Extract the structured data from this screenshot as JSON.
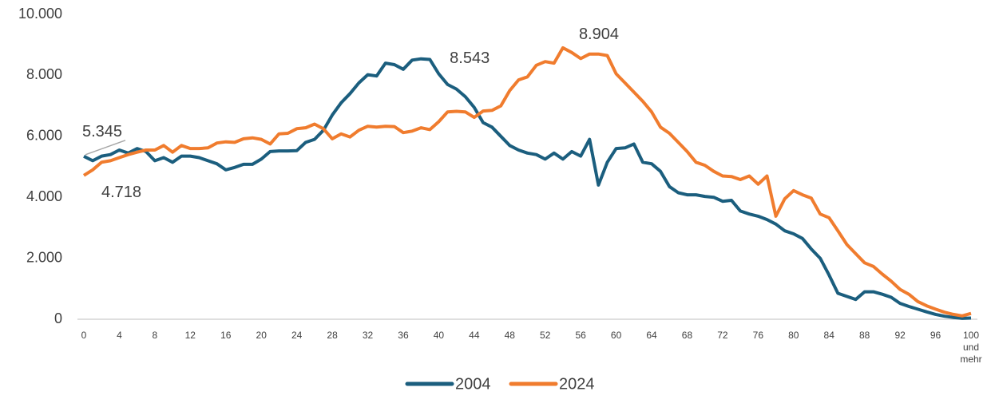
{
  "chart_data": {
    "type": "line",
    "categories": [
      "0",
      null,
      null,
      null,
      "4",
      null,
      null,
      null,
      "8",
      null,
      null,
      null,
      "12",
      null,
      null,
      null,
      "16",
      null,
      null,
      null,
      "20",
      null,
      null,
      null,
      "24",
      null,
      null,
      null,
      "28",
      null,
      null,
      null,
      "32",
      null,
      null,
      null,
      "36",
      null,
      null,
      null,
      "40",
      null,
      null,
      null,
      "44",
      null,
      null,
      null,
      "48",
      null,
      null,
      null,
      "52",
      null,
      null,
      null,
      "56",
      null,
      null,
      null,
      "60",
      null,
      null,
      null,
      "64",
      null,
      null,
      null,
      "68",
      null,
      null,
      null,
      "72",
      null,
      null,
      null,
      "76",
      null,
      null,
      null,
      "80",
      null,
      null,
      null,
      "84",
      null,
      null,
      null,
      "88",
      null,
      null,
      null,
      "92",
      null,
      null,
      null,
      "96",
      null,
      null,
      null,
      "100 und mehr"
    ],
    "series": [
      {
        "name": "2004",
        "color": "#1b5e7e",
        "values": [
          5345,
          5200,
          5350,
          5400,
          5550,
          5450,
          5600,
          5500,
          5200,
          5300,
          5150,
          5350,
          5350,
          5300,
          5200,
          5100,
          4900,
          4980,
          5080,
          5080,
          5250,
          5500,
          5520,
          5520,
          5530,
          5800,
          5900,
          6200,
          6700,
          7100,
          7400,
          7750,
          8020,
          7980,
          8400,
          8350,
          8200,
          8500,
          8543,
          8520,
          8050,
          7700,
          7550,
          7300,
          6950,
          6450,
          6300,
          6000,
          5700,
          5550,
          5450,
          5400,
          5250,
          5450,
          5250,
          5500,
          5350,
          5900,
          4400,
          5150,
          5600,
          5620,
          5750,
          5150,
          5100,
          4850,
          4350,
          4150,
          4080,
          4080,
          4030,
          4000,
          3870,
          3900,
          3550,
          3450,
          3380,
          3270,
          3120,
          2900,
          2800,
          2650,
          2300,
          2000,
          1450,
          850,
          750,
          650,
          900,
          900,
          820,
          720,
          520,
          420,
          330,
          240,
          160,
          100,
          60,
          30,
          40
        ],
        "value_labels": [
          "5.345",
          null,
          null,
          null,
          null,
          null,
          null,
          null,
          null,
          null,
          null,
          null,
          null,
          null,
          null,
          null,
          null,
          null,
          null,
          null,
          null,
          null,
          null,
          null,
          null,
          null,
          null,
          null,
          null,
          null,
          null,
          null,
          null,
          null,
          null,
          null,
          null,
          null,
          "8.543",
          null,
          null,
          null,
          null,
          null,
          null,
          null,
          null,
          null,
          null,
          null,
          null,
          null,
          null,
          null,
          null,
          null,
          null,
          null,
          null,
          null,
          null,
          null,
          null,
          null,
          null,
          null,
          null,
          null,
          null,
          null,
          null,
          null,
          null,
          null,
          null,
          null,
          null,
          null,
          null,
          null,
          null,
          null,
          null,
          null,
          null,
          null,
          null,
          null,
          null,
          null,
          null,
          null,
          null,
          null,
          null,
          null,
          null,
          null,
          null,
          null,
          null
        ]
      },
      {
        "name": "2024",
        "color": "#f07c2e",
        "values": [
          4718,
          4900,
          5150,
          5200,
          5300,
          5400,
          5480,
          5550,
          5550,
          5700,
          5480,
          5700,
          5600,
          5600,
          5620,
          5780,
          5820,
          5800,
          5920,
          5950,
          5900,
          5750,
          6080,
          6100,
          6250,
          6280,
          6400,
          6250,
          5920,
          6080,
          5980,
          6200,
          6330,
          6300,
          6330,
          6320,
          6120,
          6170,
          6280,
          6220,
          6480,
          6800,
          6820,
          6800,
          6620,
          6830,
          6850,
          7000,
          7500,
          7850,
          7950,
          8330,
          8450,
          8400,
          8904,
          8750,
          8550,
          8700,
          8700,
          8650,
          8050,
          7750,
          7450,
          7150,
          6800,
          6300,
          6100,
          5800,
          5500,
          5150,
          5050,
          4850,
          4700,
          4680,
          4580,
          4700,
          4430,
          4700,
          3380,
          3950,
          4220,
          4080,
          3970,
          3450,
          3330,
          2900,
          2450,
          2150,
          1850,
          1730,
          1480,
          1250,
          980,
          820,
          580,
          440,
          330,
          230,
          160,
          110,
          190
        ],
        "value_labels": [
          "4.718",
          null,
          null,
          null,
          null,
          null,
          null,
          null,
          null,
          null,
          null,
          null,
          null,
          null,
          null,
          null,
          null,
          null,
          null,
          null,
          null,
          null,
          null,
          null,
          null,
          null,
          null,
          null,
          null,
          null,
          null,
          null,
          null,
          null,
          null,
          null,
          null,
          null,
          null,
          null,
          null,
          null,
          null,
          null,
          null,
          null,
          null,
          null,
          null,
          null,
          null,
          null,
          null,
          null,
          "8.904",
          null,
          null,
          null,
          null,
          null,
          null,
          null,
          null,
          null,
          null,
          null,
          null,
          null,
          null,
          null,
          null,
          null,
          null,
          null,
          null,
          null,
          null,
          null,
          null,
          null,
          null,
          null,
          null,
          null,
          null,
          null,
          null,
          null,
          null,
          null,
          null,
          null,
          null,
          null,
          null,
          null,
          null,
          null,
          null,
          null,
          null
        ]
      }
    ],
    "ylim": [
      0,
      10000
    ],
    "yticks": [
      0,
      {
        "value": 2000,
        "label": "2.000"
      },
      {
        "value": 4000,
        "label": "4.000"
      },
      {
        "value": 6000,
        "label": "6.000"
      },
      {
        "value": 8000,
        "label": "8.000"
      },
      {
        "value": 10000,
        "label": "10.000"
      }
    ],
    "grid": false,
    "legend": "bottom"
  }
}
